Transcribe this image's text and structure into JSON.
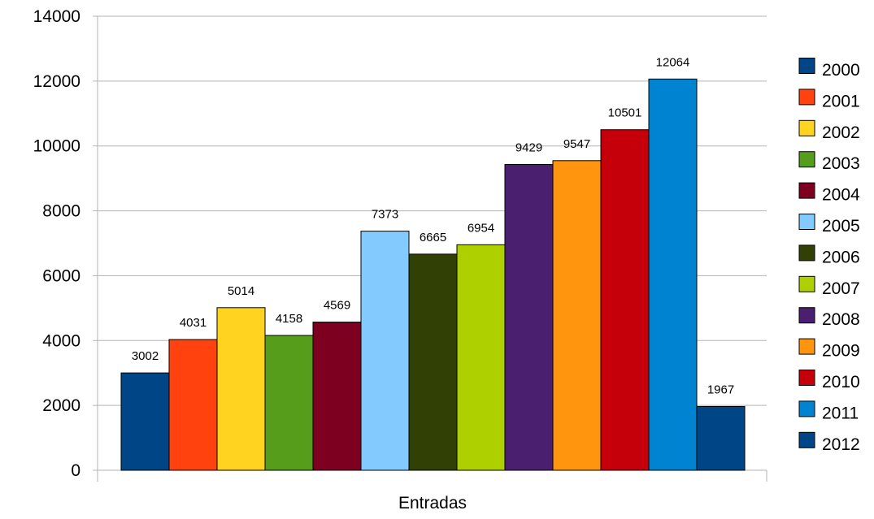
{
  "chart_data": {
    "type": "bar",
    "title": "",
    "xlabel": "Entradas",
    "ylabel": "",
    "ylim": [
      0,
      14000
    ],
    "yticks": [
      "0",
      "2000",
      "4000",
      "6000",
      "8000",
      "10000",
      "12000",
      "14000"
    ],
    "grid": "horizontal",
    "legend_position": "right",
    "categories": [
      "Entradas"
    ],
    "series": [
      {
        "name": "2000",
        "values": [
          3002
        ],
        "color": "#004586"
      },
      {
        "name": "2001",
        "values": [
          4031
        ],
        "color": "#ff420e"
      },
      {
        "name": "2002",
        "values": [
          5014
        ],
        "color": "#ffd320"
      },
      {
        "name": "2003",
        "values": [
          4158
        ],
        "color": "#579d1c"
      },
      {
        "name": "2004",
        "values": [
          4569
        ],
        "color": "#7e0021"
      },
      {
        "name": "2005",
        "values": [
          7373
        ],
        "color": "#83caff"
      },
      {
        "name": "2006",
        "values": [
          6665
        ],
        "color": "#314004"
      },
      {
        "name": "2007",
        "values": [
          6954
        ],
        "color": "#aecf00"
      },
      {
        "name": "2008",
        "values": [
          9429
        ],
        "color": "#4b1f6f"
      },
      {
        "name": "2009",
        "values": [
          9547
        ],
        "color": "#ff950e"
      },
      {
        "name": "2010",
        "values": [
          10501
        ],
        "color": "#c5000b"
      },
      {
        "name": "2011",
        "values": [
          12064
        ],
        "color": "#0084d1"
      },
      {
        "name": "2012",
        "values": [
          1967
        ],
        "color": "#004586"
      }
    ]
  }
}
